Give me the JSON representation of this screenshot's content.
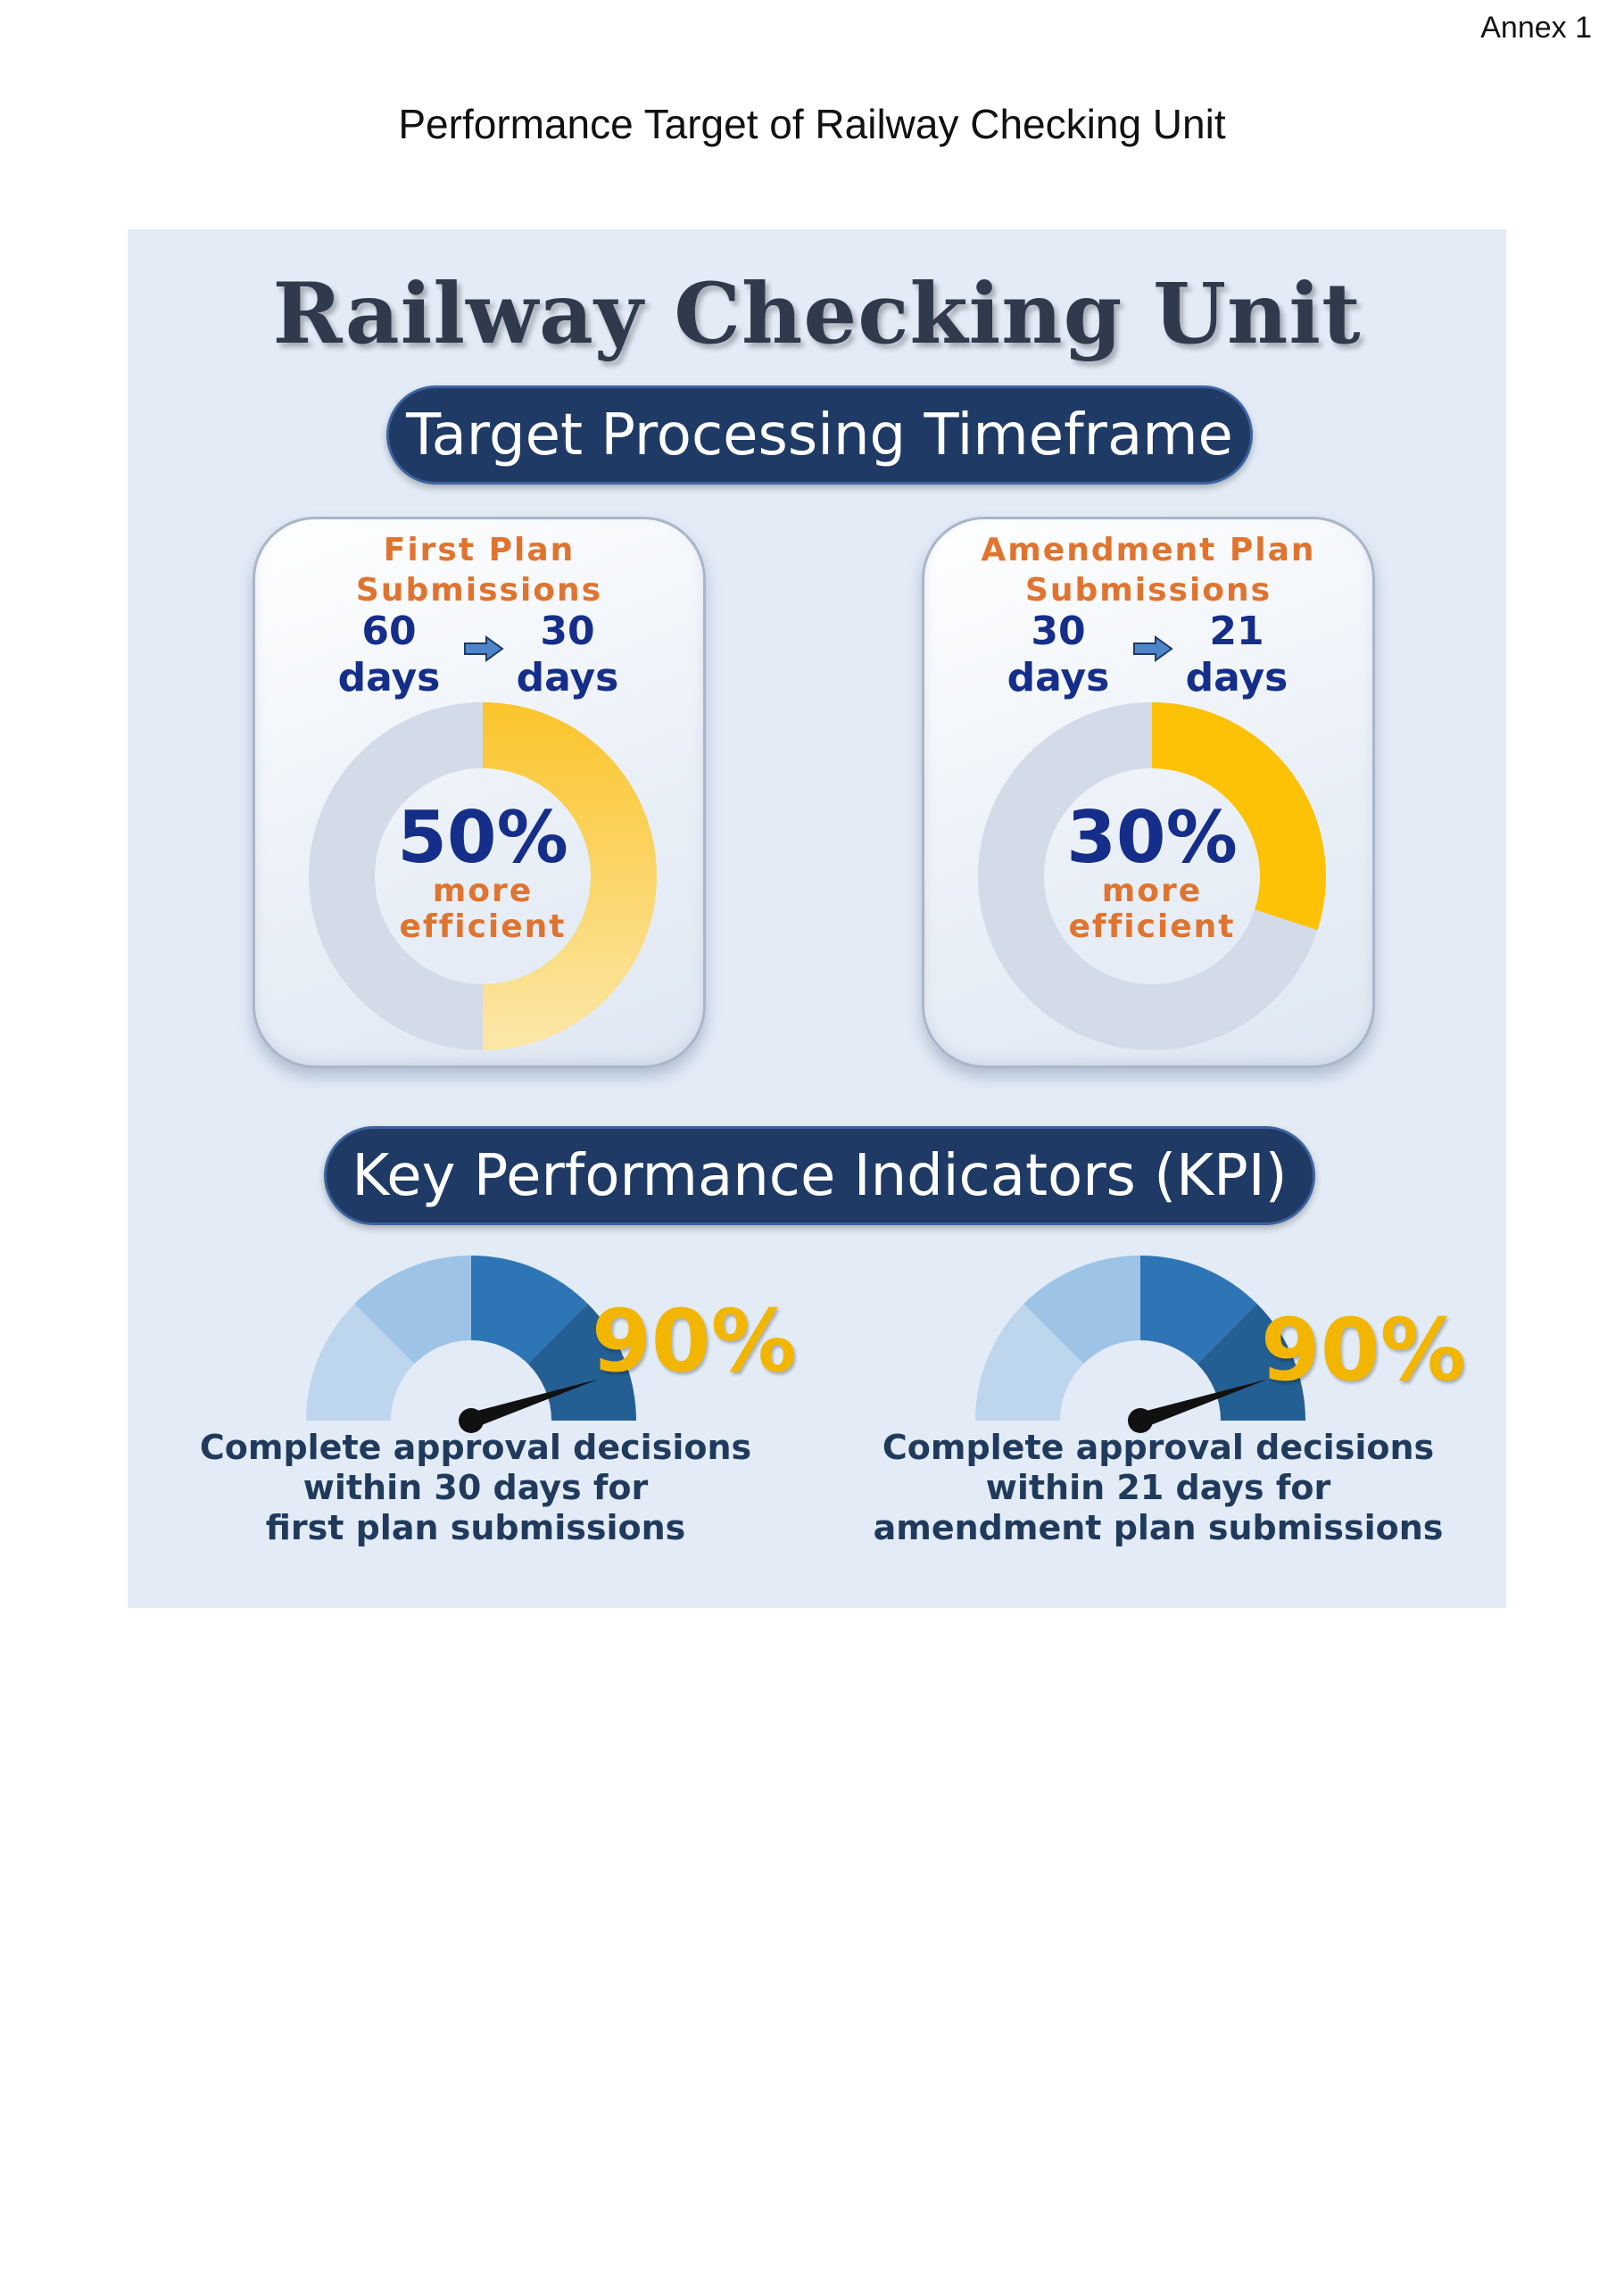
{
  "header": {
    "annex": "Annex 1",
    "title": "Performance Target of Railway Checking Unit"
  },
  "infographic": {
    "title": "Railway Checking Unit",
    "timeframe_heading": "Target Processing Timeframe",
    "cards": [
      {
        "heading_lines": [
          "First Plan",
          "Submissions"
        ],
        "from_value": "60",
        "from_unit": "days",
        "to_value": "30",
        "to_unit": "days",
        "percent": "50%",
        "percent_value": 50,
        "note_lines": [
          "more",
          "efficient"
        ]
      },
      {
        "heading_lines": [
          "Amendment Plan",
          "Submissions"
        ],
        "from_value": "30",
        "from_unit": "days",
        "to_value": "21",
        "to_unit": "days",
        "percent": "30%",
        "percent_value": 30,
        "note_lines": [
          "more",
          "efficient"
        ]
      }
    ],
    "kpi_heading": "Key Performance Indicators (KPI)",
    "kpis": [
      {
        "percent": "90%",
        "percent_value": 90,
        "text_lines": [
          "Complete approval decisions",
          "within 30 days for",
          "first plan submissions"
        ]
      },
      {
        "percent": "90%",
        "percent_value": 90,
        "text_lines": [
          "Complete approval decisions",
          "within 21 days for",
          "amendment plan submissions"
        ]
      }
    ]
  },
  "colors": {
    "navy": "#1f3a64",
    "accent_orange": "#e0742f",
    "accent_yellow": "#f2b600",
    "text_blue": "#152e8a"
  },
  "icons": {
    "arrow": "right-arrow-icon",
    "gauge_needle": "gauge-needle-icon"
  }
}
